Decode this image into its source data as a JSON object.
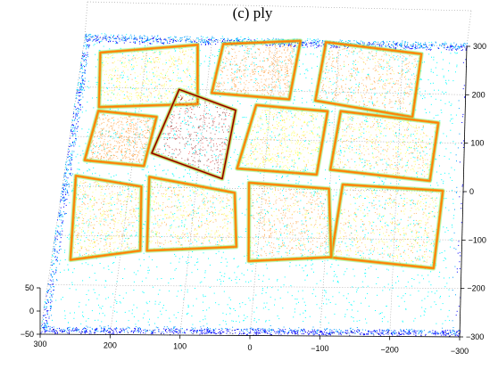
{
  "title": "(c) ply",
  "chart_data": {
    "type": "scatter",
    "title": "(c) ply",
    "description_kind": "3D point cloud colored by height (jet colormap)",
    "colormap": [
      "#00008f",
      "#0000ff",
      "#00a0ff",
      "#00ffff",
      "#80ff80",
      "#ffff00",
      "#ff8000",
      "#ff0000",
      "#800000"
    ],
    "grid": true,
    "x_ticks": [
      "300",
      "200",
      "100",
      "0",
      "−100",
      "−200",
      "−300"
    ],
    "y_ticks": [
      "300",
      "200",
      "100",
      "0",
      "−100",
      "−200",
      "−300"
    ],
    "z_ticks": [
      "50",
      "0",
      "−50"
    ],
    "xlim": [
      -300,
      300
    ],
    "ylim": [
      -300,
      300
    ],
    "zlim": [
      -50,
      50
    ],
    "stones": [
      {
        "pts": [
          [
            -230,
            260
          ],
          [
            -80,
            280
          ],
          [
            -70,
            160
          ],
          [
            -220,
            130
          ]
        ],
        "h": 0.75
      },
      {
        "pts": [
          [
            -40,
            280
          ],
          [
            80,
            270
          ],
          [
            90,
            170
          ],
          [
            -30,
            160
          ]
        ],
        "h": 0.8
      },
      {
        "pts": [
          [
            120,
            270
          ],
          [
            270,
            250
          ],
          [
            260,
            140
          ],
          [
            110,
            150
          ]
        ],
        "h": 0.7
      },
      {
        "pts": [
          [
            -260,
            120
          ],
          [
            -110,
            140
          ],
          [
            -100,
            20
          ],
          [
            -250,
            0
          ]
        ],
        "h": 0.72
      },
      {
        "pts": [
          [
            -90,
            140
          ],
          [
            20,
            150
          ],
          [
            40,
            20
          ],
          [
            -80,
            10
          ]
        ],
        "h": 0.7
      },
      {
        "pts": [
          [
            50,
            130
          ],
          [
            140,
            170
          ],
          [
            170,
            40
          ],
          [
            60,
            -10
          ]
        ],
        "h": 1.0
      },
      {
        "pts": [
          [
            170,
            120
          ],
          [
            260,
            130
          ],
          [
            270,
            30
          ],
          [
            180,
            20
          ]
        ],
        "h": 0.78
      },
      {
        "pts": [
          [
            -270,
            -20
          ],
          [
            -120,
            -10
          ],
          [
            -110,
            -160
          ],
          [
            -260,
            -180
          ]
        ],
        "h": 0.72
      },
      {
        "pts": [
          [
            -100,
            -20
          ],
          [
            20,
            -10
          ],
          [
            10,
            -170
          ],
          [
            -110,
            -160
          ]
        ],
        "h": 0.75
      },
      {
        "pts": [
          [
            40,
            -30
          ],
          [
            170,
            0
          ],
          [
            160,
            -150
          ],
          [
            30,
            -140
          ]
        ],
        "h": 0.72
      },
      {
        "pts": [
          [
            180,
            -20
          ],
          [
            280,
            0
          ],
          [
            270,
            -170
          ],
          [
            170,
            -150
          ]
        ],
        "h": 0.72
      }
    ]
  }
}
